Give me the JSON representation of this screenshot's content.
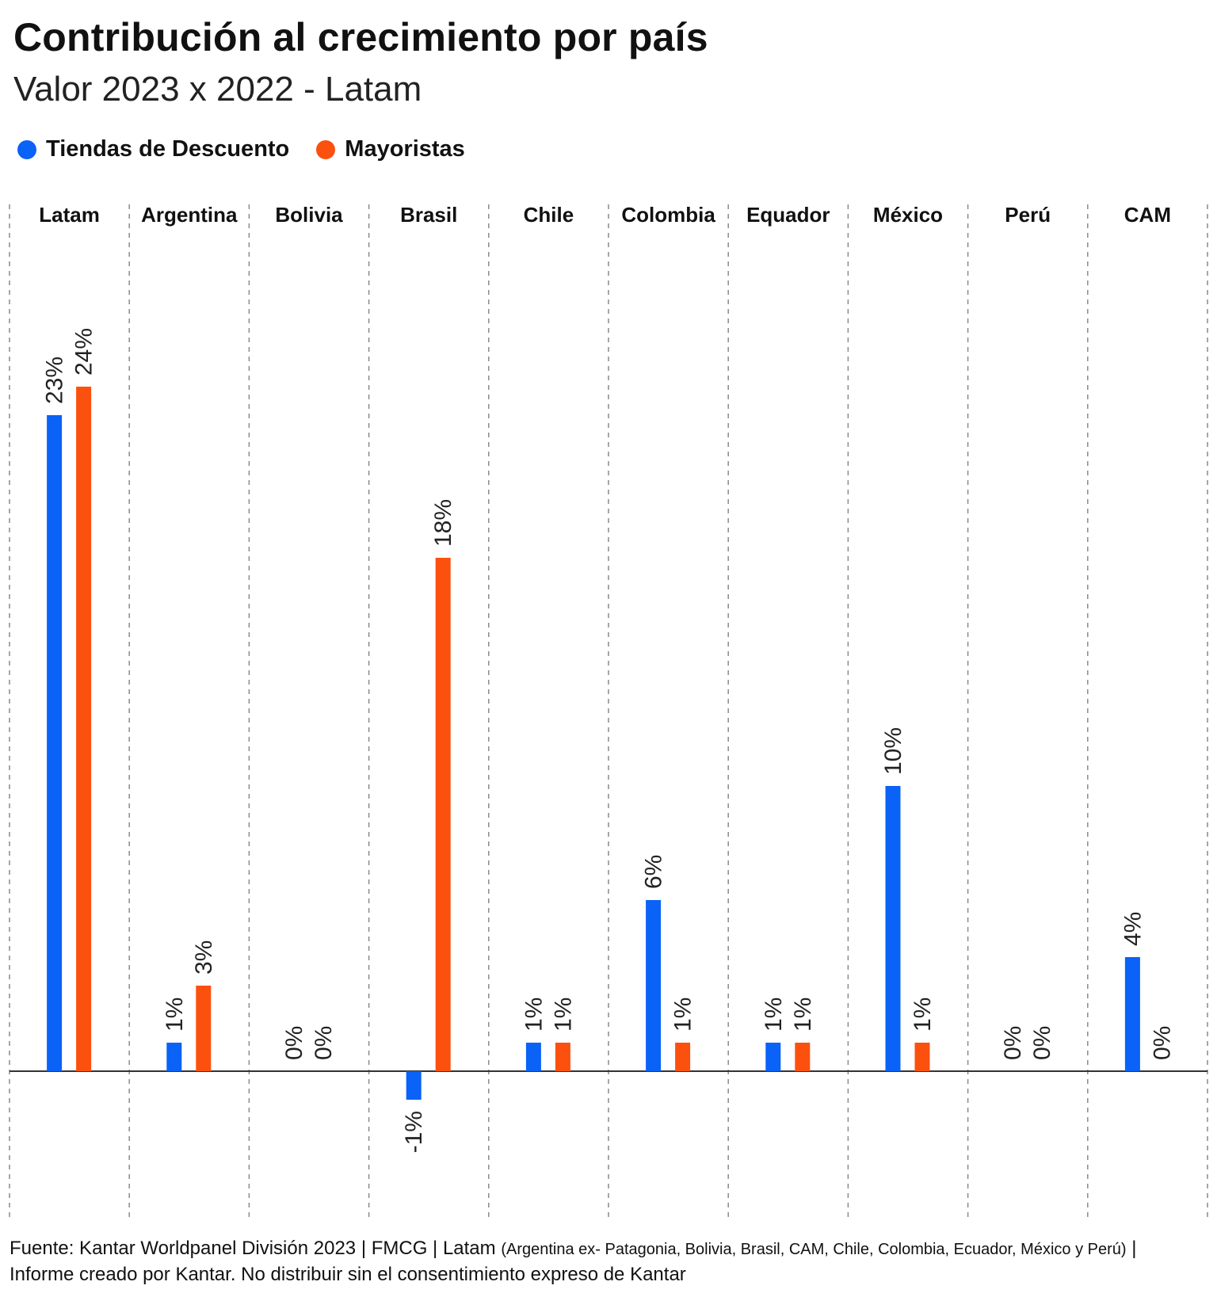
{
  "title": "Contribución al crecimiento por país",
  "subtitle": "Valor 2023 x 2022 - Latam",
  "footer": {
    "main": "Fuente: Kantar Worldpanel División 2023 | FMCG | Latam ",
    "note": "(Argentina ex- Patagonia, Bolivia, Brasil, CAM, Chile, Colombia, Ecuador, México y Perú)",
    "rest": " | Informe creado por Kantar. No distribuir sin el consentimiento expreso de Kantar"
  },
  "colors": {
    "discount": "#0a62f7",
    "wholesale": "#fc500f",
    "axis": "#333333",
    "divider": "#8a8a8a"
  },
  "chart_data": {
    "type": "bar",
    "categories": [
      "Latam",
      "Argentina",
      "Bolivia",
      "Brasil",
      "Chile",
      "Colombia",
      "Equador",
      "México",
      "Perú",
      "CAM"
    ],
    "series": [
      {
        "name": "Tiendas de Descuento",
        "values": [
          23,
          1,
          0,
          -1,
          1,
          6,
          1,
          10,
          0,
          4
        ],
        "labels": [
          "23%",
          "1%",
          "0%",
          "-1%",
          "1%",
          "6%",
          "1%",
          "10%",
          "0%",
          "4%"
        ]
      },
      {
        "name": "Mayoristas",
        "values": [
          24,
          3,
          0,
          18,
          1,
          1,
          1,
          1,
          0,
          0
        ],
        "labels": [
          "24%",
          "3%",
          "0%",
          "18%",
          "1%",
          "1%",
          "1%",
          "1%",
          "0%",
          "0%"
        ]
      }
    ],
    "ylim": [
      -5,
      30
    ],
    "legend_position": "top-left",
    "grid": false
  }
}
